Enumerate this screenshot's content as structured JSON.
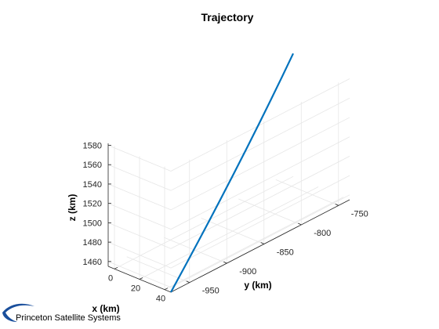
{
  "chart_data": {
    "type": "line",
    "projection": "3d",
    "title": "Trajectory",
    "xlabel": "x (km)",
    "ylabel": "y (km)",
    "zlabel": "z (km)",
    "xlim": [
      -5,
      45
    ],
    "ylim": [
      -975,
      -735
    ],
    "zlim": [
      1455,
      1582
    ],
    "xticks": [
      0,
      20,
      40
    ],
    "yticks": [
      -950,
      -900,
      -850,
      -800,
      -750
    ],
    "zticks": [
      1460,
      1480,
      1500,
      1520,
      1540,
      1560,
      1580
    ],
    "grid": true,
    "series": [
      {
        "color": "#0072BD",
        "x": [
          45,
          0
        ],
        "y": [
          -975,
          -735
        ],
        "z": [
          1455,
          1582
        ]
      }
    ]
  },
  "branding": {
    "company": "Princeton Satellite Systems"
  }
}
